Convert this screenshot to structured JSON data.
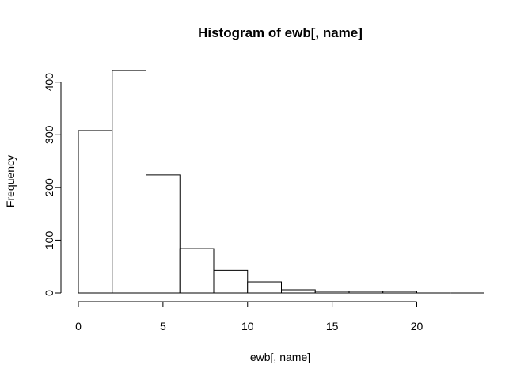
{
  "chart_data": {
    "type": "bar",
    "title": "Histogram of ewb[, name]",
    "xlabel": "ewb[, name]",
    "ylabel": "Frequency",
    "bins": [
      {
        "x0": 0,
        "x1": 2,
        "count": 308
      },
      {
        "x0": 2,
        "x1": 4,
        "count": 422
      },
      {
        "x0": 4,
        "x1": 6,
        "count": 224
      },
      {
        "x0": 6,
        "x1": 8,
        "count": 84
      },
      {
        "x0": 8,
        "x1": 10,
        "count": 43
      },
      {
        "x0": 10,
        "x1": 12,
        "count": 21
      },
      {
        "x0": 12,
        "x1": 14,
        "count": 6
      },
      {
        "x0": 14,
        "x1": 16,
        "count": 3
      },
      {
        "x0": 16,
        "x1": 18,
        "count": 3
      },
      {
        "x0": 18,
        "x1": 20,
        "count": 3
      },
      {
        "x0": 20,
        "x1": 22,
        "count": 0
      },
      {
        "x0": 22,
        "x1": 24,
        "count": 0
      }
    ],
    "xticks": [
      0,
      5,
      10,
      15,
      20
    ],
    "yticks": [
      0,
      100,
      200,
      300,
      400
    ],
    "xlim": [
      0,
      24
    ],
    "ylim": [
      0,
      422
    ],
    "grid": false,
    "colors": {
      "bar_fill": "#ffffff",
      "bar_stroke": "#000000"
    }
  }
}
